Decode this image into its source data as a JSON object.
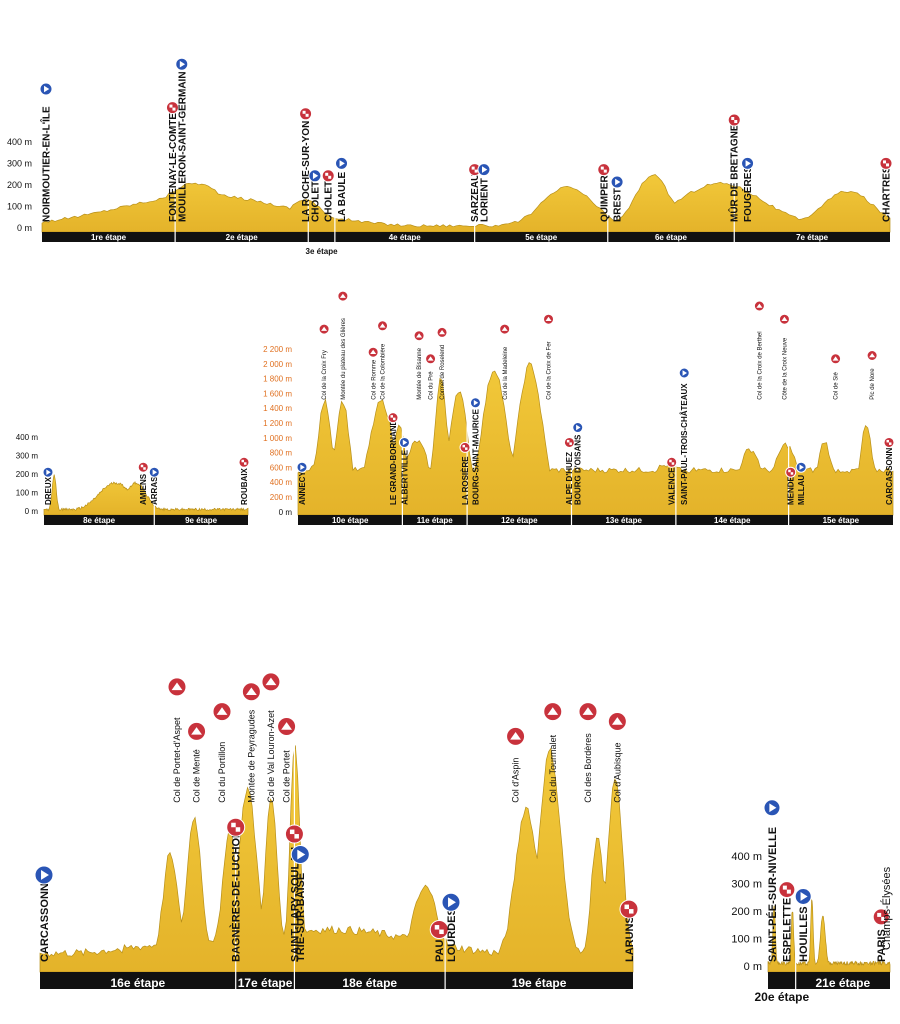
{
  "legend_colors": {
    "profile_fill": "#ecc232",
    "profile_stroke": "#b8901a",
    "stage_bar": "#111111",
    "start_icon": "#2a55b5",
    "finish_icon": "#c8323c",
    "text": "#111111",
    "axis_orange": "#e07020"
  },
  "panels": [
    {
      "id": "p1",
      "yticks": [
        "400 m",
        "300 m",
        "200 m",
        "100 m",
        "0 m"
      ],
      "stages": [
        {
          "label": "1re étape",
          "d": 1.0
        },
        {
          "label": "2e étape",
          "d": 1.0
        },
        {
          "label": "3e étape",
          "d": 0.2
        },
        {
          "label": "4e étape",
          "d": 1.05
        },
        {
          "label": "5e étape",
          "d": 1.0
        },
        {
          "label": "6e étape",
          "d": 0.95
        },
        {
          "label": "7e étape",
          "d": 1.17
        }
      ],
      "towns": [
        {
          "name": "NOIRMOUTIER-EN-L'ÎLE",
          "d": 0.0,
          "icon": "start"
        },
        {
          "name": "FONTENAY-LE-COMTE",
          "d": 0.98,
          "icon": "finish"
        },
        {
          "name": "MOUILLERON-SAINT-GERMAIN",
          "d": 1.05,
          "icon": "start"
        },
        {
          "name": "LA ROCHE-SUR-YON",
          "d": 1.98,
          "icon": "finish"
        },
        {
          "name": "CHOLET",
          "d": 2.05,
          "icon": "start"
        },
        {
          "name": "CHOLET",
          "d": 2.15,
          "icon": "finish"
        },
        {
          "name": "LA BAULE",
          "d": 2.25,
          "icon": "start"
        },
        {
          "name": "SARZEAU",
          "d": 3.25,
          "icon": "finish"
        },
        {
          "name": "LORIENT",
          "d": 3.32,
          "icon": "start"
        },
        {
          "name": "QUIMPER",
          "d": 4.22,
          "icon": "finish"
        },
        {
          "name": "BREST",
          "d": 4.32,
          "icon": "start"
        },
        {
          "name": "MÛR DE BRETAGNE",
          "d": 5.2,
          "icon": "finish"
        },
        {
          "name": "FOUGÈRES",
          "d": 5.3,
          "icon": "start"
        },
        {
          "name": "CHARTRES",
          "d": 6.35,
          "icon": "finish"
        }
      ]
    },
    {
      "id": "p2",
      "yticks": [
        "400 m",
        "300 m",
        "200 m",
        "100 m",
        "0 m"
      ],
      "stages": [
        {
          "label": "8e étape",
          "d": 1.0
        },
        {
          "label": "9e étape",
          "d": 0.85
        }
      ],
      "towns": [
        {
          "name": "DREUX",
          "d": 0.02,
          "icon": "start"
        },
        {
          "name": "AMIENS",
          "d": 0.9,
          "icon": "finish"
        },
        {
          "name": "ARRAS",
          "d": 1.0,
          "icon": "start"
        },
        {
          "name": "ROUBAIX",
          "d": 1.82,
          "icon": "finish"
        }
      ]
    },
    {
      "id": "p3",
      "yticks": [
        "2 200 m",
        "2 000 m",
        "1 800 m",
        "1 600 m",
        "1 400 m",
        "1 200 m",
        "1 000 m",
        "800 m",
        "600 m",
        "400 m",
        "200 m",
        "0 m"
      ],
      "stages": [
        {
          "label": "10e étape",
          "d": 1.0
        },
        {
          "label": "11e étape",
          "d": 0.62
        },
        {
          "label": "12e étape",
          "d": 1.0
        },
        {
          "label": "13e étape",
          "d": 1.0
        },
        {
          "label": "14e étape",
          "d": 1.08
        },
        {
          "label": "15e étape",
          "d": 1.0
        }
      ],
      "towns": [
        {
          "name": "ANNECY",
          "d": 0.02,
          "icon": "start"
        },
        {
          "name": "Col de la Croix Fry",
          "d": 0.25,
          "icon": "climb"
        },
        {
          "name": "Montée du plateau des Glières",
          "d": 0.43,
          "icon": "climb"
        },
        {
          "name": "Col de Romme",
          "d": 0.72,
          "icon": "climb"
        },
        {
          "name": "Col de la Colombière",
          "d": 0.81,
          "icon": "climb"
        },
        {
          "name": "LE GRAND-BORNAND",
          "d": 0.91,
          "icon": "finish"
        },
        {
          "name": "ALBERTVILLE",
          "d": 1.02,
          "icon": "start"
        },
        {
          "name": "Montée de Bisanne",
          "d": 1.16,
          "icon": "climb"
        },
        {
          "name": "Col du Pré",
          "d": 1.27,
          "icon": "climb"
        },
        {
          "name": "Cormet de Roselend",
          "d": 1.38,
          "icon": "climb"
        },
        {
          "name": "LA ROSIÈRE",
          "d": 1.6,
          "icon": "finish"
        },
        {
          "name": "BOURG-SAINT-MAURICE",
          "d": 1.7,
          "icon": "start"
        },
        {
          "name": "Col de la Madeleine",
          "d": 1.98,
          "icon": "climb"
        },
        {
          "name": "Col de la Croix de Fer",
          "d": 2.4,
          "icon": "climb"
        },
        {
          "name": "ALPE D'HUEZ",
          "d": 2.6,
          "icon": "finish"
        },
        {
          "name": "BOURG D'OISANS",
          "d": 2.68,
          "icon": "start"
        },
        {
          "name": "VALENCE",
          "d": 3.58,
          "icon": "finish"
        },
        {
          "name": "SAINT-PAUL-TROIS-CHÂTEAUX",
          "d": 3.7,
          "icon": "start"
        },
        {
          "name": "Col de la Croix de Berthel",
          "d": 4.42,
          "icon": "climb"
        },
        {
          "name": "Côte de la Croix Neuve",
          "d": 4.66,
          "icon": "climb"
        },
        {
          "name": "MENDE",
          "d": 4.72,
          "icon": "finish"
        },
        {
          "name": "MILLAU",
          "d": 4.82,
          "icon": "start"
        },
        {
          "name": "Col de Sié",
          "d": 5.15,
          "icon": "climb"
        },
        {
          "name": "Pic de Nore",
          "d": 5.5,
          "icon": "climb"
        },
        {
          "name": "CARCASSONNE",
          "d": 5.68,
          "icon": "finish"
        }
      ]
    },
    {
      "id": "p4",
      "yticks": [],
      "stages": [
        {
          "label": "16e étape",
          "d": 1.0
        },
        {
          "label": "17e étape",
          "d": 0.3
        },
        {
          "label": "18e étape",
          "d": 0.77
        },
        {
          "label": "19e étape",
          "d": 0.96
        }
      ],
      "towns": [
        {
          "name": "CARCASSONNE",
          "d": 0.0,
          "icon": "start"
        },
        {
          "name": "Col de Portet-d'Aspet",
          "d": 0.7,
          "icon": "climb"
        },
        {
          "name": "Col de Menté",
          "d": 0.8,
          "icon": "climb"
        },
        {
          "name": "Col du Portillon",
          "d": 0.93,
          "icon": "climb"
        },
        {
          "name": "BAGNÈRES-DE-LUCHON",
          "d": 1.0,
          "icon": "finish"
        },
        {
          "name": "Montée de Peyragudes",
          "d": 1.08,
          "icon": "climb"
        },
        {
          "name": "Col de Val Louron-Azet",
          "d": 1.18,
          "icon": "climb"
        },
        {
          "name": "Col de Portet",
          "d": 1.26,
          "icon": "climb"
        },
        {
          "name": "SAINT-LARY-SOULAN",
          "d": 1.3,
          "icon": "finish"
        },
        {
          "name": "TRIE-SUR-BAÏSE",
          "d": 1.33,
          "icon": "start"
        },
        {
          "name": "PAU",
          "d": 2.04,
          "icon": "finish"
        },
        {
          "name": "LOURDES",
          "d": 2.1,
          "icon": "start"
        },
        {
          "name": "Col d'Aspin",
          "d": 2.43,
          "icon": "climb"
        },
        {
          "name": "Col du Tourmalet",
          "d": 2.62,
          "icon": "climb"
        },
        {
          "name": "Col des Bordères",
          "d": 2.8,
          "icon": "climb"
        },
        {
          "name": "Col d'Aubisque",
          "d": 2.95,
          "icon": "climb"
        },
        {
          "name": "LARUNS",
          "d": 3.02,
          "icon": "finish"
        }
      ]
    },
    {
      "id": "p5",
      "yticks": [
        "400 m",
        "300 m",
        "200 m",
        "100 m",
        "0 m"
      ],
      "stages": [
        {
          "label": "20e étape",
          "d": 0.22
        },
        {
          "label": "21e étape",
          "d": 0.75
        }
      ],
      "towns": [
        {
          "name": "SAINT-PÉE-SUR-NIVELLE",
          "d": 0.0,
          "icon": "start"
        },
        {
          "name": "ESPELETTE",
          "d": 0.15,
          "icon": "finish"
        },
        {
          "name": "HOUILLES",
          "d": 0.28,
          "icon": "start"
        },
        {
          "name": "PARIS",
          "d": 0.9,
          "icon": "finish"
        },
        {
          "name": "Champs-Élysées",
          "d": 0.96,
          "icon": "none"
        }
      ]
    }
  ]
}
